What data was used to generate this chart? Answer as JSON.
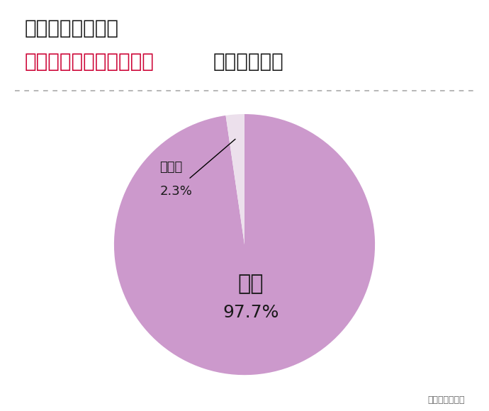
{
  "title_line1": "モチベーションが",
  "title_line2_red": "下がった・集中が切れた",
  "title_line2_black": "ことはある？",
  "values": [
    97.7,
    2.3
  ],
  "labels": [
    "はい",
    "いいえ"
  ],
  "percentages": [
    "97.7%",
    "2.3%"
  ],
  "colors": [
    "#cc99cc",
    "#ece0ec"
  ],
  "source_text": "縁結び大学調べ",
  "bg_color": "#ffffff",
  "title_fontsize": 20,
  "label_fontsize_large": 22,
  "label_fontsize_small": 13,
  "source_fontsize": 9
}
